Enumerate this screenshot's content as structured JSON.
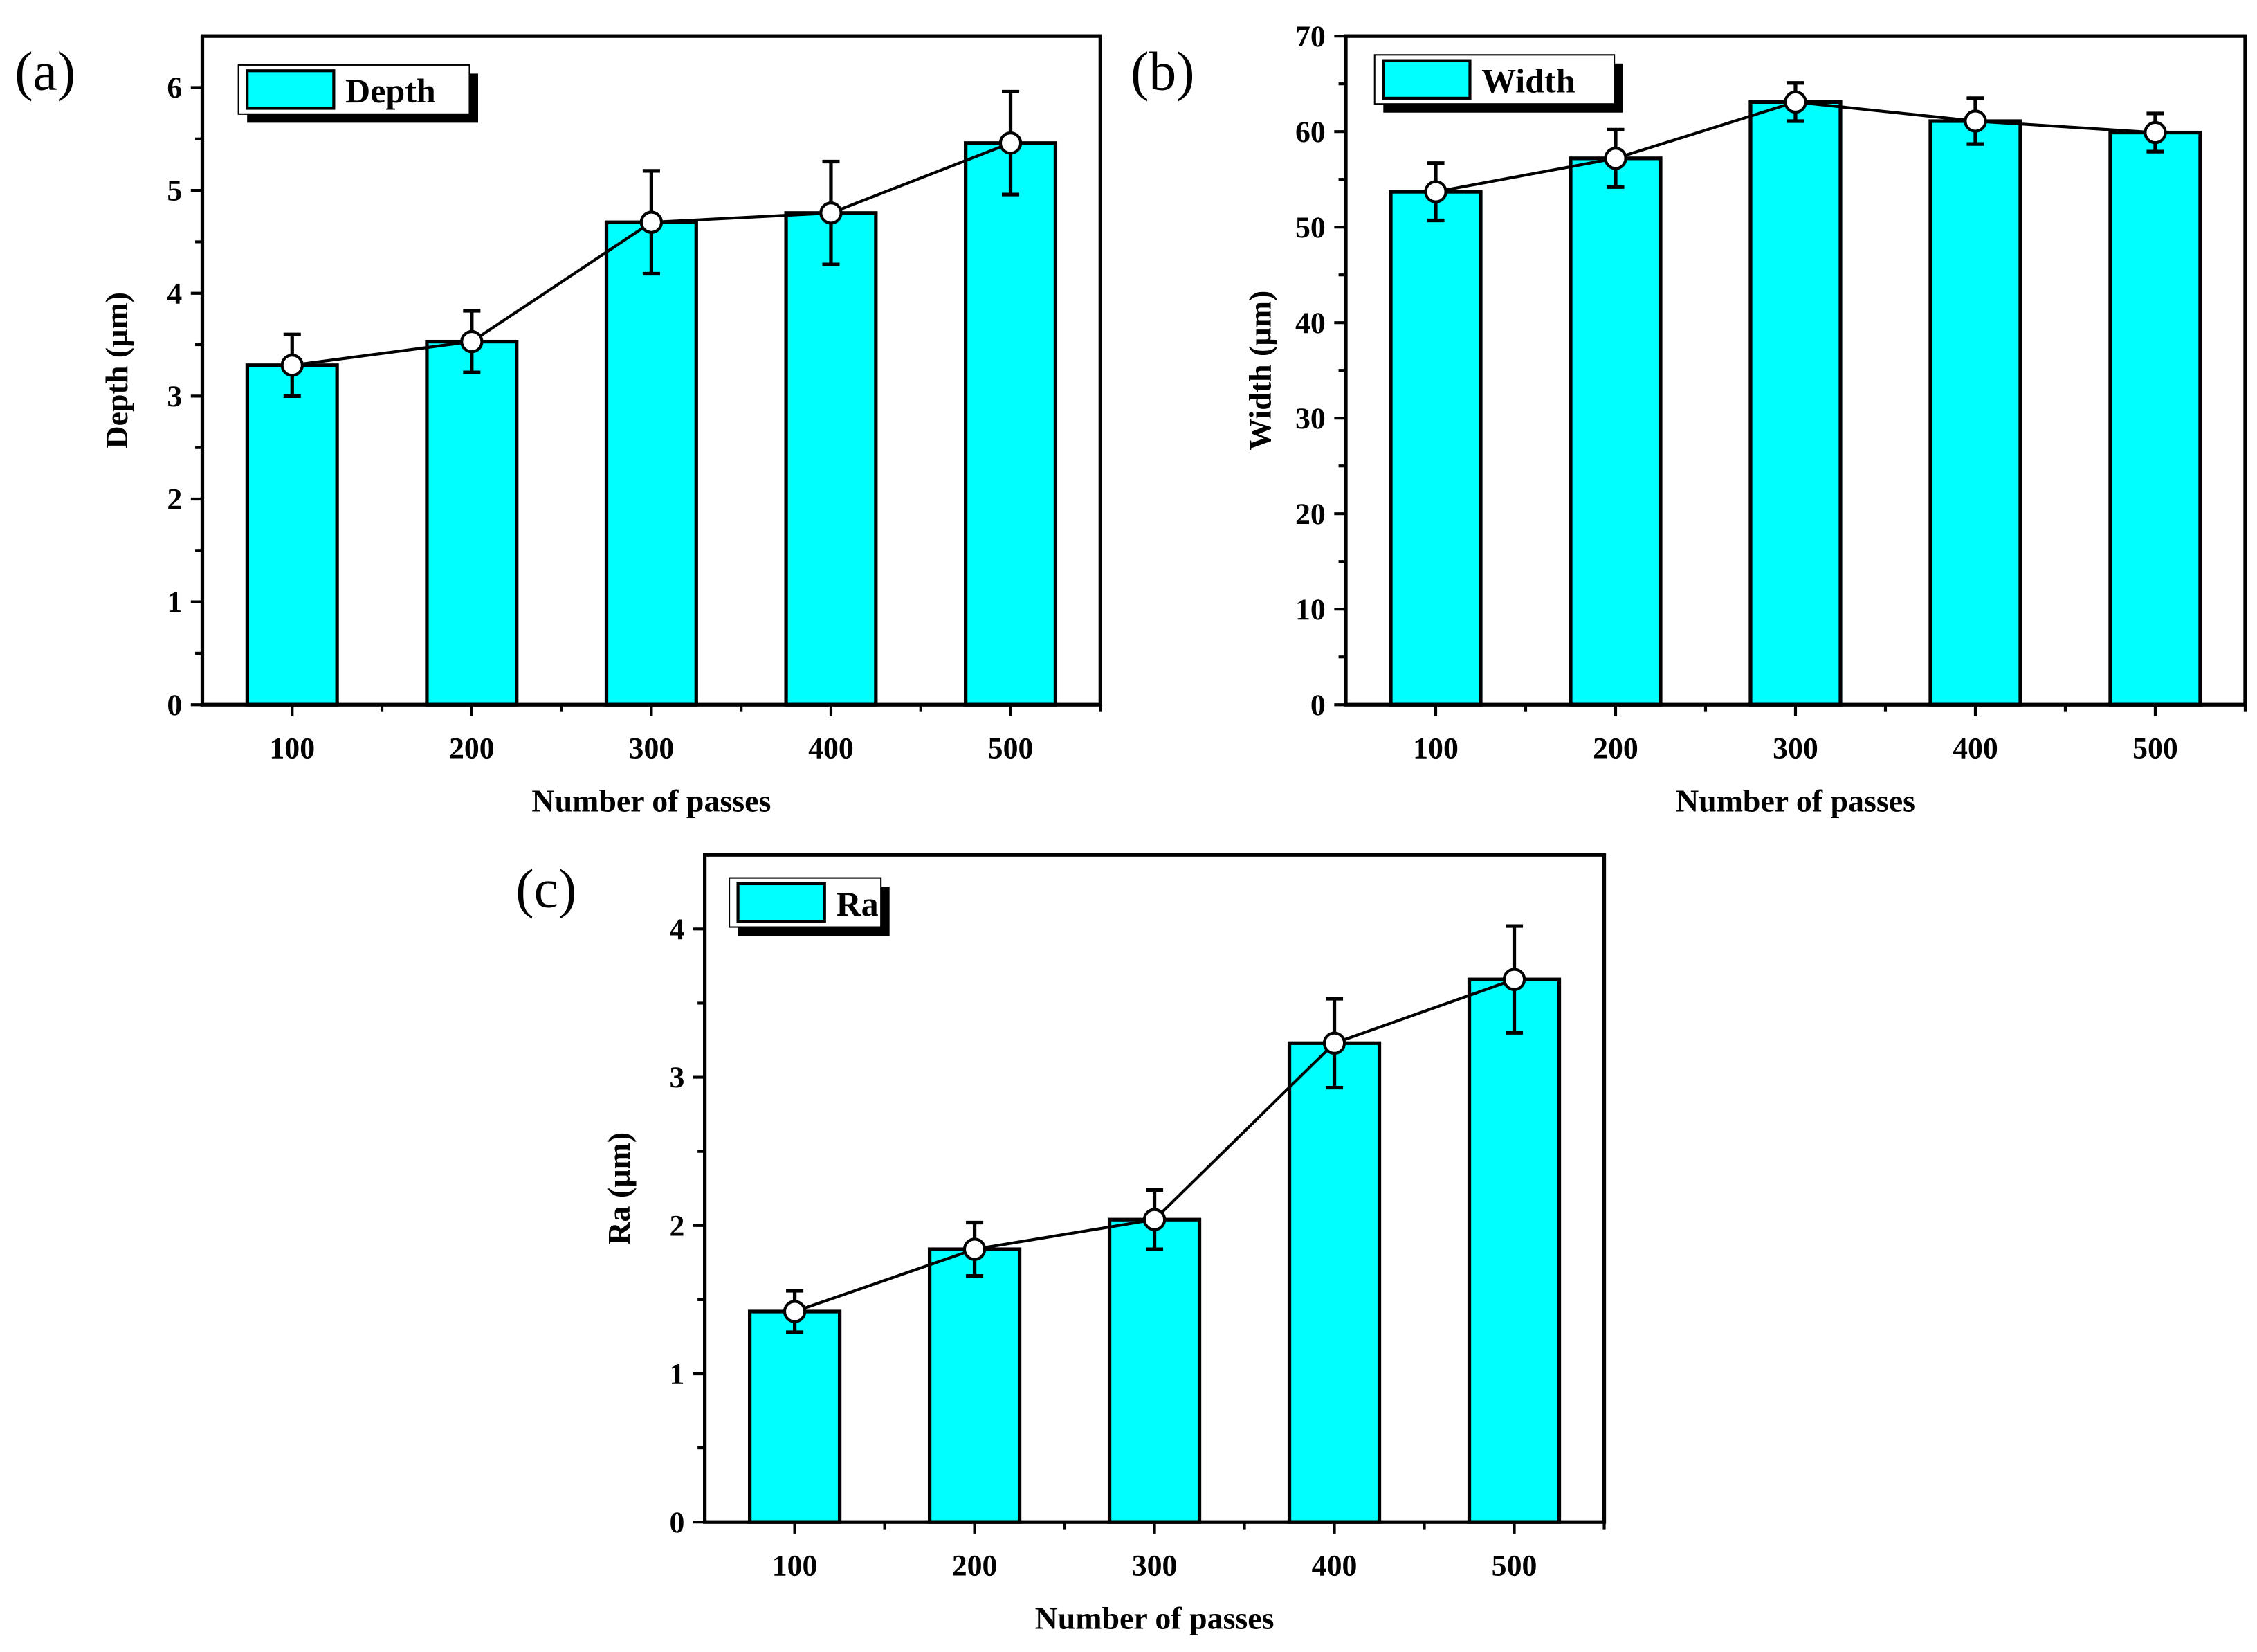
{
  "colors": {
    "bar": "#00FFFF",
    "edge": "#000000",
    "marker": "#FFFFFF"
  },
  "chart_data": [
    {
      "type": "bar",
      "panel_label": "(a)",
      "categories": [
        "100",
        "200",
        "300",
        "400",
        "500"
      ],
      "values": [
        3.3,
        3.53,
        4.69,
        4.78,
        5.46
      ],
      "errors": [
        0.3,
        0.3,
        0.5,
        0.5,
        0.5
      ],
      "xlabel": "Number of passes",
      "ylabel": "Depth (µm)",
      "ylim": [
        0,
        6.5
      ],
      "yticks": [
        0,
        1,
        2,
        3,
        4,
        5,
        6
      ],
      "legend": "Depth",
      "legend_position": "top-left",
      "legend_bold": true
    },
    {
      "type": "bar",
      "panel_label": "(b)",
      "categories": [
        "100",
        "200",
        "300",
        "400",
        "500"
      ],
      "values": [
        53.7,
        57.2,
        63.1,
        61.1,
        59.9
      ],
      "errors": [
        3,
        3,
        2,
        2.4,
        2
      ],
      "xlabel": "Number of passes",
      "ylabel": "Width (µm)",
      "ylim": [
        0,
        70
      ],
      "yticks": [
        0,
        10,
        20,
        30,
        40,
        50,
        60,
        70
      ],
      "legend": "Width",
      "legend_position": "top-left",
      "legend_bold": true
    },
    {
      "type": "bar",
      "panel_label": "(c)",
      "categories": [
        "100",
        "200",
        "300",
        "400",
        "500"
      ],
      "values": [
        1.42,
        1.84,
        2.04,
        3.23,
        3.66
      ],
      "errors": [
        0.14,
        0.18,
        0.2,
        0.3,
        0.36
      ],
      "xlabel": "Number of passes",
      "ylabel": "Ra (µm)",
      "ylim": [
        0,
        4.5
      ],
      "yticks": [
        0,
        1,
        2,
        3,
        4
      ],
      "legend": "Ra",
      "legend_position": "top-left",
      "legend_bold": false
    }
  ]
}
